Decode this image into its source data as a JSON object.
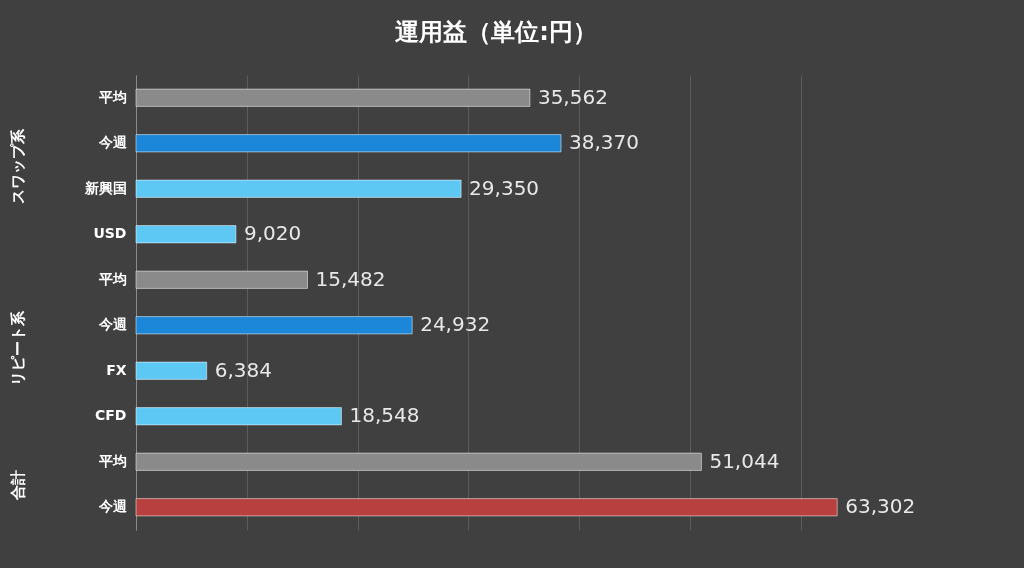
{
  "chart_data": {
    "type": "bar",
    "orientation": "horizontal",
    "title": "運用益（単位:円）",
    "categories": [
      "平均",
      "今週",
      "新興国",
      "USD",
      "平均",
      "今週",
      "FX",
      "CFD",
      "平均",
      "今週"
    ],
    "values": [
      35562,
      38370,
      29350,
      9020,
      15482,
      24932,
      6384,
      18548,
      51044,
      63302
    ],
    "colors": [
      "#8a8a8a",
      "#1c86d8",
      "#5ec8f5",
      "#5ec8f5",
      "#8a8a8a",
      "#1c86d8",
      "#5ec8f5",
      "#5ec8f5",
      "#8a8a8a",
      "#b8403e"
    ],
    "annotations": [
      "スワップ系",
      "リピート系",
      "合計"
    ],
    "value_labels": [
      "35,562",
      "38,370",
      "29,350",
      "9,020",
      "15,482",
      "24,932",
      "6,384",
      "18,548",
      "51,044",
      "63,302"
    ],
    "grid": "x",
    "tick_labels": "y"
  }
}
